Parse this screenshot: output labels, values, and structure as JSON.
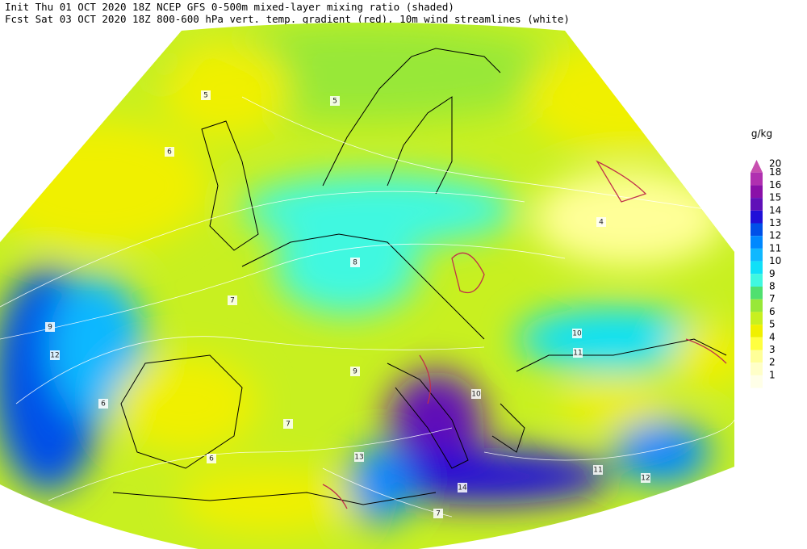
{
  "header": {
    "line1": "Init  Thu 01 OCT 2020 18Z  NCEP GFS 0-500m mixed-layer mixing ratio (shaded)",
    "line2": "Fcst Sat 03 OCT 2020 18Z  800-600 hPa vert. temp. gradient (red), 10m wind streamlines (white)"
  },
  "legend": {
    "unit": "g/kg",
    "levels": [
      {
        "value": 20,
        "color": "#c850b0"
      },
      {
        "value": 18,
        "color": "#b030b0"
      },
      {
        "value": 16,
        "color": "#8a10a8"
      },
      {
        "value": 15,
        "color": "#6010b8"
      },
      {
        "value": 14,
        "color": "#2010d8"
      },
      {
        "value": 13,
        "color": "#0050e8"
      },
      {
        "value": 12,
        "color": "#0088ff"
      },
      {
        "value": 11,
        "color": "#10b8ff"
      },
      {
        "value": 10,
        "color": "#10e0f8"
      },
      {
        "value": 9,
        "color": "#40f8e0"
      },
      {
        "value": 8,
        "color": "#50e070"
      },
      {
        "value": 7,
        "color": "#98e838"
      },
      {
        "value": 6,
        "color": "#c8f020"
      },
      {
        "value": 5,
        "color": "#f0f000"
      },
      {
        "value": 4,
        "color": "#ffff40"
      },
      {
        "value": 3,
        "color": "#ffff98"
      },
      {
        "value": 2,
        "color": "#ffffc8"
      },
      {
        "value": 1,
        "color": "#ffffe8"
      }
    ]
  },
  "map_labels": [
    {
      "value": 6
    },
    {
      "value": 7
    },
    {
      "value": 5
    },
    {
      "value": 9
    },
    {
      "value": 12
    },
    {
      "value": 8
    },
    {
      "value": 10
    },
    {
      "value": 11
    },
    {
      "value": 6
    },
    {
      "value": 7
    },
    {
      "value": 14
    },
    {
      "value": 13
    },
    {
      "value": 10
    },
    {
      "value": 7
    },
    {
      "value": 4
    },
    {
      "value": 5
    },
    {
      "value": 11
    },
    {
      "value": 12
    },
    {
      "value": 9
    },
    {
      "value": 6
    }
  ]
}
